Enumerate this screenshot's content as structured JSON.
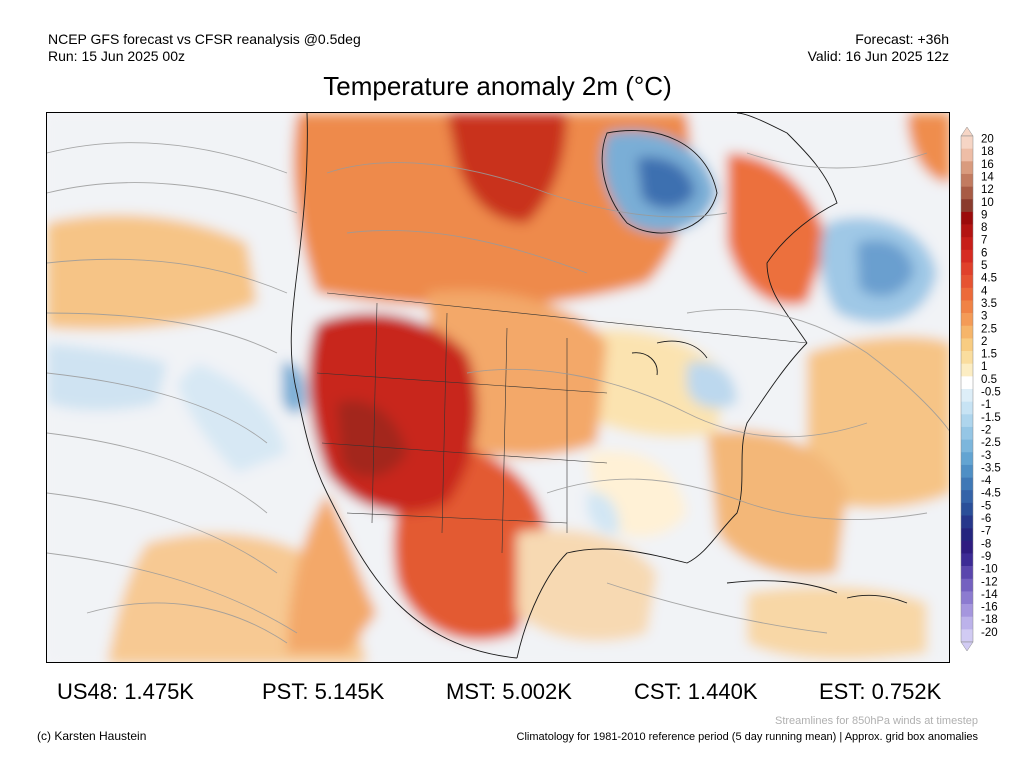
{
  "header": {
    "model_line": "NCEP GFS forecast vs CFSR reanalysis @0.5deg",
    "run_line": "Run: 15 Jun 2025 00z",
    "forecast_line": "Forecast: +36h",
    "valid_line": "Valid: 16 Jun 2025 12z"
  },
  "title": "Temperature anomaly 2m (°C)",
  "colorbar": {
    "labels": [
      "20",
      "18",
      "16",
      "14",
      "12",
      "10",
      "9",
      "8",
      "7",
      "6",
      "5",
      "4.5",
      "4",
      "3.5",
      "3",
      "2.5",
      "2",
      "1.5",
      "1",
      "0.5",
      "-0.5",
      "-1",
      "-1.5",
      "-2",
      "-2.5",
      "-3",
      "-3.5",
      "-4",
      "-4.5",
      "-5",
      "-6",
      "-7",
      "-8",
      "-9",
      "-10",
      "-12",
      "-14",
      "-16",
      "-18",
      "-20"
    ],
    "colors": [
      "#f6d5c5",
      "#eebda6",
      "#d99b7e",
      "#c27b60",
      "#a85b44",
      "#8a3b2d",
      "#9b0b0b",
      "#b31412",
      "#c71e19",
      "#d62b22",
      "#e0402b",
      "#e65332",
      "#ec6a3a",
      "#f08346",
      "#f49b57",
      "#f6b56a",
      "#f8cc82",
      "#fadd9e",
      "#fcedc3",
      "#ffffff",
      "#ddeef8",
      "#c7e3f4",
      "#aed5ed",
      "#95c6e5",
      "#7cb6dc",
      "#63a4d2",
      "#4f8fc5",
      "#3f78b6",
      "#3463a8",
      "#2a4f99",
      "#26378b",
      "#24257e",
      "#2e1c80",
      "#3c2b95",
      "#5a46ad",
      "#7461c0",
      "#8c7bd0",
      "#a596de",
      "#bcb2ea",
      "#d1cbf3"
    ],
    "top_swatch_color": "#f6d5c5",
    "bottom_swatch_color": "#d1cbf3"
  },
  "stats": [
    {
      "label": "US48: 1.475K"
    },
    {
      "label": "PST: 5.145K"
    },
    {
      "label": "MST: 5.002K"
    },
    {
      "label": "CST: 1.440K"
    },
    {
      "label": "EST: 0.752K"
    }
  ],
  "footer": {
    "credit": "(c) Karsten Haustein",
    "streamlines_note": "Streamlines for 850hPa winds at timestep",
    "climatology_note": "Climatology for 1981-2010 reference period (5 day running mean) | Approx. grid box anomalies"
  }
}
